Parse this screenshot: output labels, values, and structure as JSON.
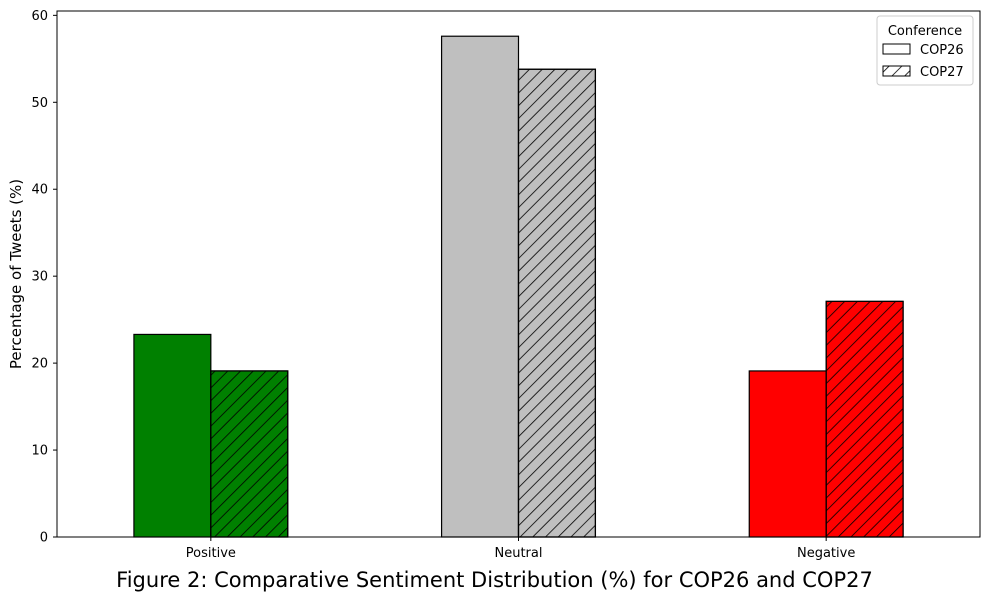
{
  "caption": "Figure 2: Comparative Sentiment Distribution (%) for COP26 and COP27",
  "chart_data": {
    "type": "bar",
    "title": "",
    "xlabel": "",
    "ylabel": "Percentage of Tweets (%)",
    "categories": [
      "Positive",
      "Neutral",
      "Negative"
    ],
    "category_colors": [
      "#008000",
      "#bfbfbf",
      "#ff0000"
    ],
    "series": [
      {
        "name": "COP26",
        "values": [
          23.3,
          57.6,
          19.1
        ],
        "pattern": "solid"
      },
      {
        "name": "COP27",
        "values": [
          19.1,
          53.8,
          27.1
        ],
        "pattern": "hatched"
      }
    ],
    "ylim": [
      0,
      60.5
    ],
    "yticks": [
      0,
      10,
      20,
      30,
      40,
      50,
      60
    ],
    "grid": false,
    "legend": {
      "title": "Conference",
      "position": "top-right"
    }
  }
}
